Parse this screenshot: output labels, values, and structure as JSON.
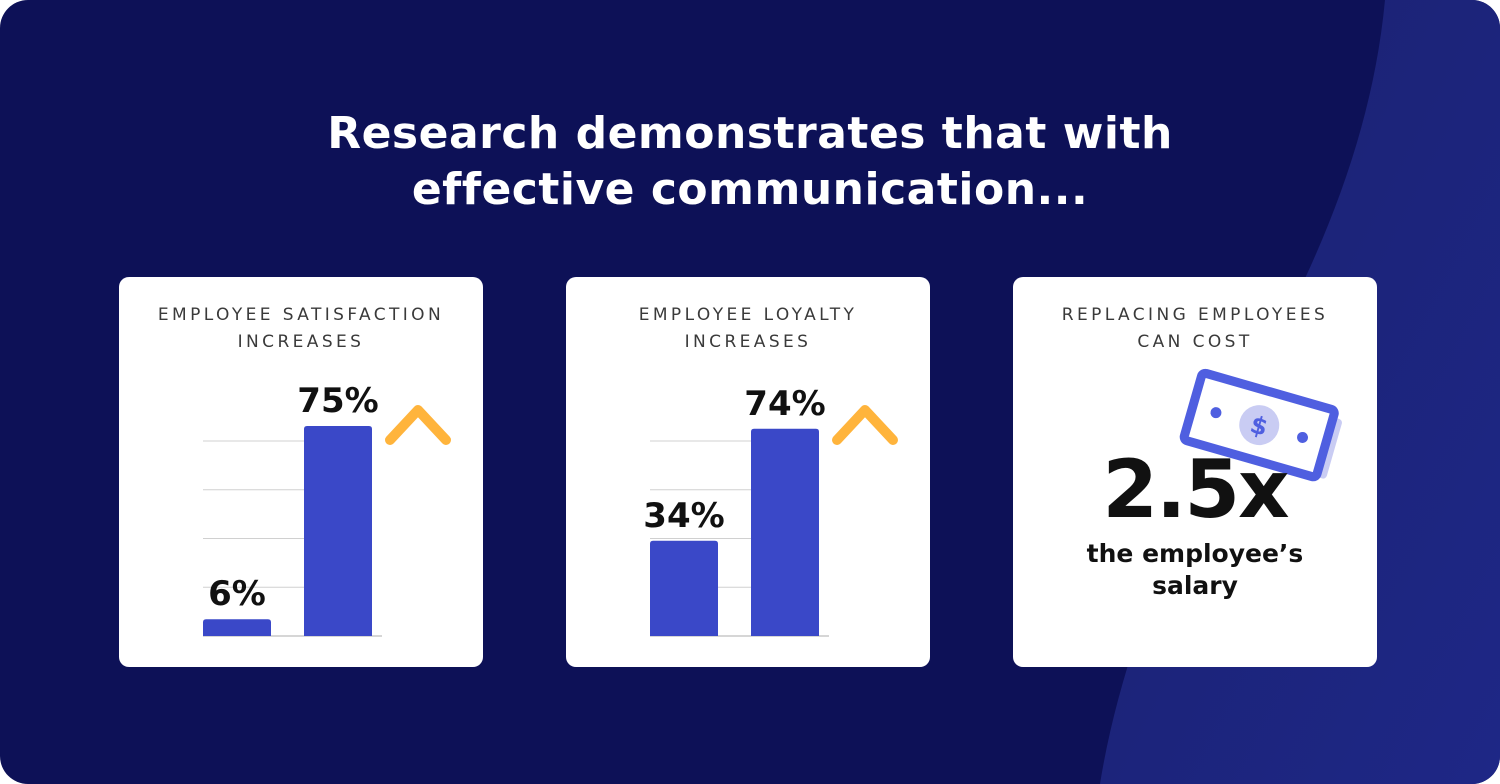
{
  "headline": {
    "line1": "Research demonstrates that with",
    "line2": "effective communication..."
  },
  "colors": {
    "background": "#0d1157",
    "bar": "#3a48c8",
    "arrow": "#ffb43c",
    "card": "#ffffff"
  },
  "cards": [
    {
      "title_line1": "EMPLOYEE SATISFACTION",
      "title_line2": "INCREASES",
      "icon": "arrow-up-icon"
    },
    {
      "title_line1": "EMPLOYEE LOYALTY",
      "title_line2": "INCREASES",
      "icon": "arrow-up-icon"
    },
    {
      "title_line1": "REPLACING EMPLOYEES",
      "title_line2": "CAN COST",
      "value": "2.5x",
      "caption_line1": "the employee’s",
      "caption_line2": "salary",
      "icon": "dollar-bill-icon"
    }
  ],
  "chart_data": [
    {
      "type": "bar",
      "title": "EMPLOYEE SATISFACTION INCREASES",
      "categories": [
        "",
        ""
      ],
      "values": [
        6,
        75
      ],
      "labels": [
        "6%",
        "75%"
      ],
      "ylim": [
        0,
        75
      ],
      "grid": true
    },
    {
      "type": "bar",
      "title": "EMPLOYEE LOYALTY INCREASES",
      "categories": [
        "",
        ""
      ],
      "values": [
        34,
        74
      ],
      "labels": [
        "34%",
        "74%"
      ],
      "ylim": [
        0,
        75
      ],
      "grid": true
    }
  ]
}
